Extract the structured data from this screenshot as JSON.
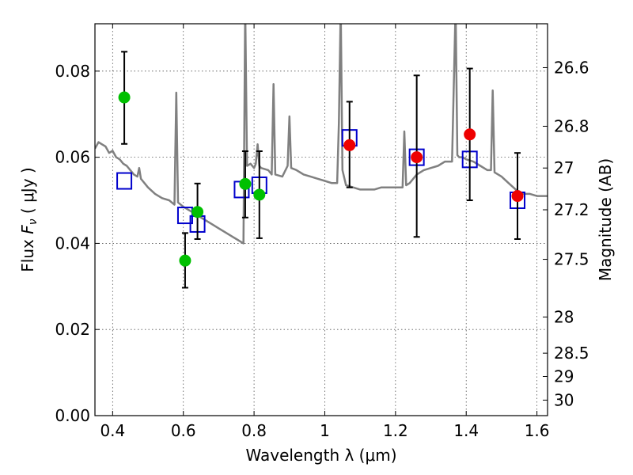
{
  "chart_data": {
    "type": "scatter",
    "xlabel": "Wavelength  λ (μm)",
    "ylabel": "Flux  F_ν  ( μJy )",
    "ylabel_right": "Magnitude (AB)",
    "xlim": [
      0.35,
      1.63
    ],
    "ylim": [
      0.0,
      0.091
    ],
    "grid": true,
    "x_ticks": [
      0.4,
      0.6,
      0.8,
      1.0,
      1.2,
      1.4,
      1.6
    ],
    "x_tick_labels": [
      "0.4",
      "0.6",
      "0.8",
      "1",
      "1.2",
      "1.4",
      "1.6"
    ],
    "y_ticks": [
      0.0,
      0.02,
      0.04,
      0.06,
      0.08
    ],
    "y_tick_labels": [
      "0.00",
      "0.02",
      "0.04",
      "0.06",
      "0.08"
    ],
    "y2_ticks": [
      {
        "label": "26.6",
        "flux": 0.0808
      },
      {
        "label": "26.8",
        "flux": 0.0672
      },
      {
        "label": "27",
        "flux": 0.0575
      },
      {
        "label": "27.2",
        "flux": 0.0478
      },
      {
        "label": "27.5",
        "flux": 0.0363
      },
      {
        "label": "28",
        "flux": 0.0229
      },
      {
        "label": "28.5",
        "flux": 0.0145
      },
      {
        "label": "29",
        "flux": 0.0091
      },
      {
        "label": "30",
        "flux": 0.0036
      }
    ],
    "series": [
      {
        "kind": "line",
        "color": "#808080",
        "x": [
          0.35,
          0.36,
          0.37,
          0.38,
          0.39,
          0.4,
          0.41,
          0.42,
          0.43,
          0.44,
          0.45,
          0.46,
          0.47,
          0.475,
          0.48,
          0.485,
          0.49,
          0.5,
          0.52,
          0.54,
          0.56,
          0.575,
          0.58,
          0.585,
          0.6,
          0.62,
          0.64,
          0.66,
          0.68,
          0.7,
          0.72,
          0.74,
          0.75,
          0.76,
          0.77,
          0.775,
          0.78,
          0.79,
          0.8,
          0.805,
          0.81,
          0.815,
          0.82,
          0.84,
          0.85,
          0.855,
          0.86,
          0.88,
          0.895,
          0.9,
          0.905,
          0.92,
          0.94,
          0.96,
          0.98,
          1.0,
          1.02,
          1.035,
          1.04,
          1.045,
          1.05,
          1.06,
          1.08,
          1.1,
          1.12,
          1.14,
          1.16,
          1.18,
          1.2,
          1.22,
          1.225,
          1.23,
          1.24,
          1.26,
          1.28,
          1.3,
          1.32,
          1.34,
          1.36,
          1.37,
          1.375,
          1.38,
          1.39,
          1.4,
          1.42,
          1.44,
          1.46,
          1.47,
          1.475,
          1.48,
          1.5,
          1.52,
          1.54,
          1.56,
          1.58,
          1.6,
          1.63
        ],
        "y": [
          0.062,
          0.0635,
          0.063,
          0.0625,
          0.061,
          0.0615,
          0.06,
          0.0595,
          0.0585,
          0.058,
          0.057,
          0.056,
          0.0555,
          0.0575,
          0.055,
          0.0545,
          0.054,
          0.053,
          0.0515,
          0.0505,
          0.05,
          0.049,
          0.075,
          0.0495,
          0.0485,
          0.0475,
          0.0465,
          0.0455,
          0.0445,
          0.0435,
          0.0425,
          0.0415,
          0.041,
          0.0405,
          0.04,
          0.095,
          0.058,
          0.0585,
          0.0575,
          0.0585,
          0.063,
          0.058,
          0.0575,
          0.057,
          0.056,
          0.077,
          0.056,
          0.0555,
          0.058,
          0.0695,
          0.0575,
          0.057,
          0.056,
          0.0555,
          0.055,
          0.0545,
          0.054,
          0.054,
          0.068,
          0.095,
          0.057,
          0.0535,
          0.053,
          0.0525,
          0.0525,
          0.0525,
          0.053,
          0.053,
          0.053,
          0.053,
          0.066,
          0.0535,
          0.054,
          0.056,
          0.057,
          0.0575,
          0.058,
          0.059,
          0.059,
          0.095,
          0.0605,
          0.06,
          0.06,
          0.0595,
          0.059,
          0.058,
          0.057,
          0.057,
          0.0755,
          0.0565,
          0.0555,
          0.054,
          0.0525,
          0.0515,
          0.0515,
          0.051,
          0.051
        ]
      },
      {
        "kind": "squares",
        "color": "#0000cc",
        "x": [
          0.433,
          0.605,
          0.64,
          0.765,
          0.815,
          1.07,
          1.26,
          1.41,
          1.545
        ],
        "y": [
          0.0545,
          0.0465,
          0.0445,
          0.0525,
          0.0535,
          0.0645,
          0.06,
          0.0595,
          0.05
        ]
      },
      {
        "kind": "points",
        "color": "#00c000",
        "x": [
          0.433,
          0.605,
          0.64,
          0.775,
          0.815
        ],
        "y": [
          0.0739,
          0.036,
          0.0473,
          0.0538,
          0.0513
        ],
        "yerr_low": [
          0.0108,
          0.0063,
          0.0063,
          0.0078,
          0.0101
        ],
        "yerr_high": [
          0.0106,
          0.0064,
          0.0066,
          0.0076,
          0.0101
        ]
      },
      {
        "kind": "points",
        "color": "#ee0000",
        "x": [
          1.07,
          1.26,
          1.41,
          1.545
        ],
        "y": [
          0.0628,
          0.06,
          0.0653,
          0.051
        ],
        "yerr_low": [
          0.0098,
          0.0185,
          0.0153,
          0.01
        ],
        "yerr_high": [
          0.0101,
          0.019,
          0.0153,
          0.01
        ]
      }
    ]
  }
}
